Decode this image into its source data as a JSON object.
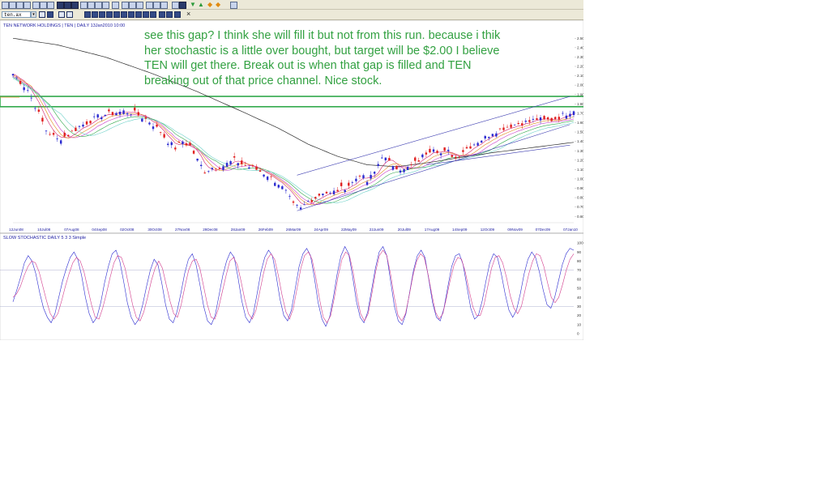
{
  "toolbar": {
    "symbol_value": "ten.ax",
    "close_glyph": "×"
  },
  "chart": {
    "title": "TEN NETWORK HOLDINGS | TEN | DAILY 13Jan2010 10:00",
    "annotation_lines": [
      "see this gap?  I think she will fill it but not from this run.  because i thik",
      "her stochastic is a little over bought, but target will be $2.00 I believe",
      "TEN will get there.   Break out is when that gap is filled and TEN",
      "breaking out of that price channel.  Nice stock."
    ],
    "colors": {
      "up_candle": "#2b2bd0",
      "down_candle": "#e02020",
      "ma_long": "#2a2a2a",
      "ma_bands": [
        "#d21e6b",
        "#e08a1b",
        "#c83cc8",
        "#2fa84a",
        "#6ad0c8"
      ],
      "channel": "#3b3bb0",
      "gap_box": "#2fa84a",
      "stoch_k": "#2b2bd0",
      "stoch_d": "#d23c8c"
    }
  },
  "stochastic": {
    "title": "SLOW STOCHASTIC DAILY 5 3 3 Simple"
  },
  "chart_data": [
    {
      "type": "candlestick",
      "title": "TEN NETWORK HOLDINGS | TEN | DAILY 13Jan2010 10:00",
      "x_labels": [
        "12Jun08",
        "10Jul08",
        "07Aug08",
        "04Sep08",
        "02Oct08",
        "30Oct08",
        "27Nov08",
        "29Dec08",
        "28Jan09",
        "26Feb09",
        "26Mar09",
        "24Apr09",
        "22May09",
        "22Jun09",
        "20Jul09",
        "17Aug09",
        "14Sep09",
        "12Oct09",
        "09Nov09",
        "07Dec09",
        "07Jan10"
      ],
      "y_ticks": [
        0.6,
        0.7,
        0.8,
        0.9,
        1.0,
        1.1,
        1.2,
        1.3,
        1.4,
        1.5,
        1.6,
        1.7,
        1.8,
        1.9,
        2.0,
        2.1,
        2.2,
        2.3,
        2.4,
        2.5
      ],
      "ylim": [
        0.55,
        2.58
      ],
      "close_path": [
        [
          0,
          2.12
        ],
        [
          4,
          1.95
        ],
        [
          6,
          1.78
        ],
        [
          9,
          1.52
        ],
        [
          12,
          1.42
        ],
        [
          15,
          1.47
        ],
        [
          18,
          1.56
        ],
        [
          21,
          1.62
        ],
        [
          24,
          1.68
        ],
        [
          27,
          1.7
        ],
        [
          30,
          1.72
        ],
        [
          33,
          1.7
        ],
        [
          36,
          1.64
        ],
        [
          38,
          1.58
        ],
        [
          40,
          1.5
        ],
        [
          42,
          1.4
        ],
        [
          44,
          1.33
        ],
        [
          46,
          1.4
        ],
        [
          48,
          1.35
        ],
        [
          50,
          1.2
        ],
        [
          52,
          1.08
        ],
        [
          54,
          1.12
        ],
        [
          57,
          1.14
        ],
        [
          60,
          1.2
        ],
        [
          63,
          1.14
        ],
        [
          66,
          1.1
        ],
        [
          69,
          1.04
        ],
        [
          72,
          0.95
        ],
        [
          74,
          0.86
        ],
        [
          76,
          0.72
        ],
        [
          78,
          0.68
        ],
        [
          80,
          0.76
        ],
        [
          82,
          0.8
        ],
        [
          84,
          0.86
        ],
        [
          86,
          0.84
        ],
        [
          88,
          0.88
        ],
        [
          90,
          0.91
        ],
        [
          92,
          0.96
        ],
        [
          94,
          1.05
        ],
        [
          96,
          0.97
        ],
        [
          98,
          1.07
        ],
        [
          100,
          1.25
        ],
        [
          102,
          1.17
        ],
        [
          104,
          1.13
        ],
        [
          106,
          1.09
        ],
        [
          108,
          1.14
        ],
        [
          110,
          1.2
        ],
        [
          112,
          1.28
        ],
        [
          114,
          1.34
        ],
        [
          116,
          1.27
        ],
        [
          118,
          1.29
        ],
        [
          120,
          1.22
        ],
        [
          122,
          1.3
        ],
        [
          124,
          1.35
        ],
        [
          126,
          1.4
        ],
        [
          128,
          1.44
        ],
        [
          130,
          1.5
        ],
        [
          132,
          1.53
        ],
        [
          134,
          1.56
        ],
        [
          136,
          1.58
        ],
        [
          138,
          1.6
        ],
        [
          140,
          1.61
        ],
        [
          142,
          1.64
        ],
        [
          144,
          1.62
        ],
        [
          146,
          1.63
        ],
        [
          148,
          1.66
        ],
        [
          150,
          1.7
        ],
        [
          152,
          1.74
        ]
      ],
      "ma_long_path": [
        [
          0,
          2.5
        ],
        [
          12,
          2.43
        ],
        [
          25,
          2.3
        ],
        [
          38,
          2.12
        ],
        [
          50,
          1.93
        ],
        [
          62,
          1.72
        ],
        [
          72,
          1.54
        ],
        [
          80,
          1.37
        ],
        [
          88,
          1.24
        ],
        [
          96,
          1.15
        ],
        [
          104,
          1.13
        ],
        [
          112,
          1.17
        ],
        [
          120,
          1.22
        ],
        [
          130,
          1.28
        ],
        [
          140,
          1.33
        ],
        [
          152,
          1.39
        ]
      ],
      "channel_lines": [
        {
          "from": [
            77,
            1.04
          ],
          "to": [
            151,
            1.88
          ]
        },
        {
          "from": [
            77,
            0.66
          ],
          "to": [
            151,
            1.58
          ]
        },
        {
          "from": [
            112,
            1.15
          ],
          "to": [
            151,
            1.36
          ]
        }
      ],
      "gap_zone": {
        "ylim": [
          1.77,
          1.88
        ],
        "label": "price gap"
      },
      "annotation_target": 2.0
    },
    {
      "type": "line",
      "title": "SLOW STOCHASTIC DAILY 5 3 3 Simple",
      "y_ticks": [
        0,
        10,
        20,
        30,
        40,
        50,
        60,
        70,
        80,
        90,
        100
      ],
      "ylim": [
        0,
        100
      ],
      "reference_lines": [
        30,
        70
      ],
      "series": [
        {
          "values": [
            35,
            48,
            62,
            78,
            86,
            80,
            66,
            45,
            28,
            18,
            12,
            22,
            40,
            58,
            72,
            84,
            90,
            82,
            64,
            40,
            22,
            12,
            18,
            34,
            56,
            74,
            88,
            92,
            80,
            58,
            34,
            18,
            10,
            16,
            32,
            52,
            70,
            82,
            76,
            56,
            32,
            16,
            12,
            24,
            44,
            66,
            82,
            88,
            76,
            54,
            30,
            14,
            10,
            20,
            42,
            64,
            80,
            90,
            84,
            62,
            36,
            18,
            12,
            22,
            44,
            68,
            84,
            92,
            86,
            64,
            38,
            20,
            14,
            26,
            50,
            74,
            88,
            94,
            86,
            62,
            34,
            16,
            8,
            18,
            40,
            66,
            86,
            96,
            88,
            64,
            36,
            18,
            12,
            24,
            48,
            72,
            90,
            96,
            86,
            58,
            30,
            14,
            10,
            22,
            46,
            70,
            86,
            92,
            84,
            60,
            34,
            18,
            14,
            28,
            52,
            74,
            86,
            88,
            76,
            52,
            28,
            16,
            20,
            36,
            58,
            78,
            88,
            84,
            66,
            44,
            26,
            18,
            26,
            44,
            66,
            82,
            90,
            84,
            68,
            48,
            32,
            28,
            40,
            58,
            76,
            88,
            94,
            92
          ]
        },
        {
          "values": [
            40,
            44,
            52,
            64,
            74,
            80,
            78,
            68,
            52,
            36,
            22,
            16,
            22,
            36,
            52,
            66,
            78,
            84,
            80,
            68,
            50,
            32,
            18,
            16,
            28,
            44,
            62,
            78,
            86,
            84,
            72,
            52,
            32,
            18,
            14,
            24,
            40,
            58,
            72,
            80,
            72,
            54,
            36,
            22,
            18,
            32,
            52,
            70,
            80,
            82,
            72,
            52,
            32,
            18,
            16,
            28,
            46,
            64,
            80,
            84,
            76,
            58,
            38,
            22,
            16,
            26,
            46,
            66,
            82,
            88,
            82,
            64,
            42,
            24,
            16,
            28,
            50,
            72,
            86,
            90,
            82,
            62,
            38,
            18,
            12,
            20,
            40,
            64,
            82,
            90,
            86,
            68,
            42,
            22,
            14,
            22,
            44,
            68,
            86,
            92,
            86,
            66,
            40,
            20,
            14,
            22,
            42,
            64,
            80,
            88,
            84,
            66,
            44,
            24,
            16,
            22,
            40,
            60,
            76,
            84,
            82,
            68,
            48,
            30,
            20,
            20,
            32,
            52,
            72,
            84,
            86,
            78,
            62,
            42,
            28,
            22,
            30,
            48,
            66,
            80,
            88,
            86,
            74,
            56,
            40,
            34,
            40,
            54,
            70,
            82,
            88
          ]
        }
      ]
    }
  ]
}
